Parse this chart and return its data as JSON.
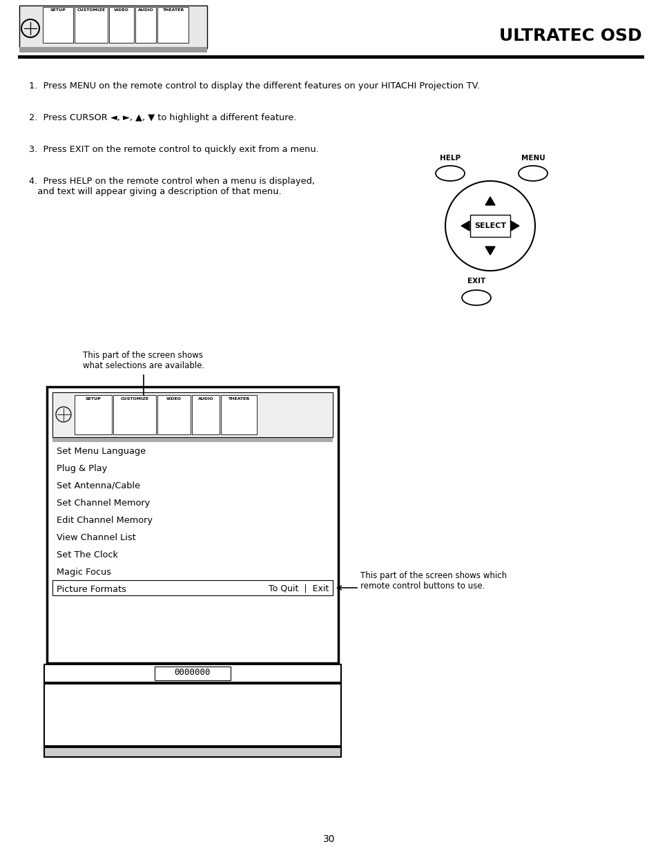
{
  "page_title": "ULTRATEC OSD",
  "page_number": "30",
  "bg_color": "#ffffff",
  "instructions": [
    {
      "num": "1.",
      "text": "Press MENU on the remote control to display the different features on your HITACHI Projection TV."
    },
    {
      "num": "2.",
      "text": "Press CURSOR ◄, ►, ▲, ▼ to highlight a different feature."
    },
    {
      "num": "3.",
      "text": "Press EXIT on the remote control to quickly exit from a menu."
    },
    {
      "num": "4.",
      "text": "Press HELP on the remote control when a menu is displayed,\n   and text will appear giving a description of that menu."
    }
  ],
  "menu_items": [
    "Set Menu Language",
    "Plug & Play",
    "Set Antenna/Cable",
    "Set Channel Memory",
    "Edit Channel Memory",
    "View Channel List",
    "Set The Clock",
    "Magic Focus",
    "Picture Formats"
  ],
  "menu_tabs": [
    "SETUP",
    "CUSTOMIZE",
    "VIDEO",
    "AUDIO",
    "THEATER"
  ],
  "annotation_left": "This part of the screen shows\nwhat selections are available.",
  "annotation_right": "This part of the screen shows which\nremote control buttons to use.",
  "channel_display": "0000000"
}
